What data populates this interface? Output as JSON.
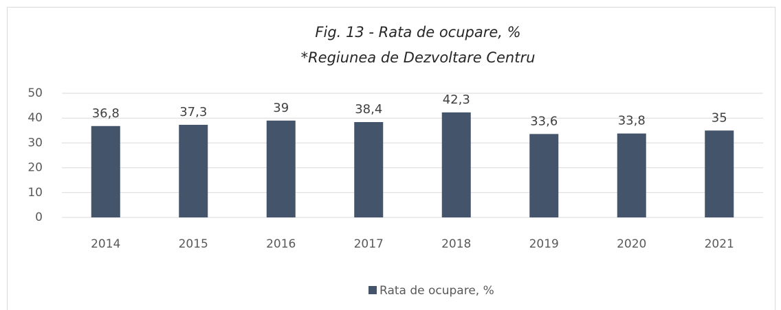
{
  "chart_data": {
    "type": "bar",
    "title": "Fig. 13 - Rata de ocupare, %",
    "subtitle": "*Regiunea de Dezvoltare Centru",
    "categories": [
      "2014",
      "2015",
      "2016",
      "2017",
      "2018",
      "2019",
      "2020",
      "2021"
    ],
    "series": [
      {
        "name": "Rata de ocupare, %",
        "color": "#44546a",
        "values": [
          36.8,
          37.3,
          39,
          38.4,
          42.3,
          33.6,
          33.8,
          35
        ],
        "value_labels": [
          "36,8",
          "37,3",
          "39",
          "38,4",
          "42,3",
          "33,6",
          "33,8",
          "35"
        ]
      }
    ],
    "ylim": [
      0,
      50
    ],
    "yticks": [
      0,
      10,
      20,
      30,
      40,
      50
    ],
    "grid": true,
    "legend": "bottom"
  }
}
